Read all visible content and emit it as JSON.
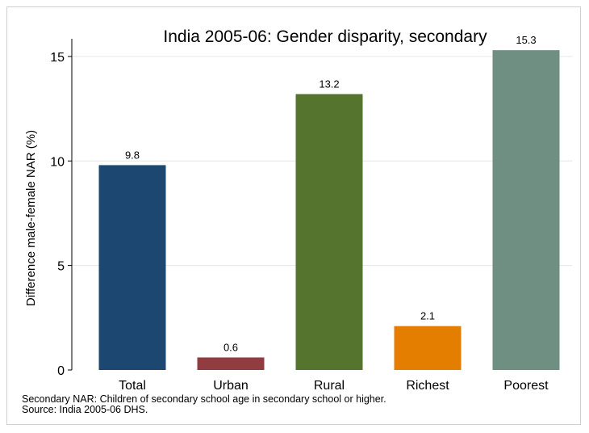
{
  "chart_data": {
    "type": "bar",
    "title": "India 2005-06: Gender disparity, secondary",
    "ylabel": "Difference male-female NAR (%)",
    "xlabel": "",
    "categories": [
      "Total",
      "Urban",
      "Rural",
      "Richest",
      "Poorest"
    ],
    "values": [
      9.8,
      0.6,
      13.2,
      2.1,
      15.3
    ],
    "value_labels": [
      "9.8",
      "0.6",
      "13.2",
      "2.1",
      "15.3"
    ],
    "colors": [
      "#1c4770",
      "#903c41",
      "#55752f",
      "#e37e00",
      "#6e8f82"
    ],
    "ylim": [
      0,
      16
    ],
    "yticks": [
      0,
      5,
      10,
      15
    ],
    "grid": true,
    "legend": "none",
    "notes": [
      "Secondary NAR: Children of secondary school age in secondary school or higher.",
      "Source: India 2005-06 DHS."
    ]
  }
}
